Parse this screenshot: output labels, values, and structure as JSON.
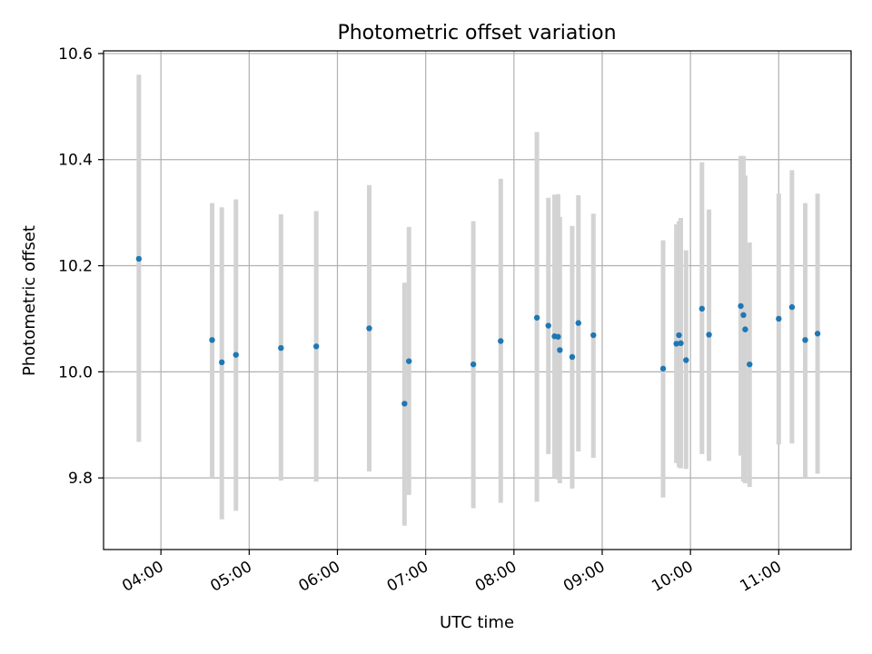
{
  "chart_data": {
    "type": "scatter",
    "title": "Photometric offset variation",
    "xlabel": "UTC time",
    "ylabel": "Photometric offset",
    "x_unit": "hours (UTC)",
    "xlim": [
      3.35,
      11.82
    ],
    "ylim": [
      9.665,
      10.605
    ],
    "grid": true,
    "legend": "none",
    "colors": {
      "marker": "#1f77b4",
      "errorbar": "#d3d3d3",
      "grid": "#b0b0b0"
    },
    "x_ticks": [
      {
        "value": 4,
        "label": "04:00"
      },
      {
        "value": 5,
        "label": "05:00"
      },
      {
        "value": 6,
        "label": "06:00"
      },
      {
        "value": 7,
        "label": "07:00"
      },
      {
        "value": 8,
        "label": "08:00"
      },
      {
        "value": 9,
        "label": "09:00"
      },
      {
        "value": 10,
        "label": "10:00"
      },
      {
        "value": 11,
        "label": "11:00"
      }
    ],
    "y_ticks": [
      {
        "value": 9.8,
        "label": "9.8"
      },
      {
        "value": 10.0,
        "label": "10.0"
      },
      {
        "value": 10.2,
        "label": "10.2"
      },
      {
        "value": 10.4,
        "label": "10.4"
      },
      {
        "value": 10.6,
        "label": "10.6"
      }
    ],
    "points": [
      {
        "x": 3.75,
        "y": 10.213,
        "ymin": 9.868,
        "ymax": 10.56
      },
      {
        "x": 4.58,
        "y": 10.06,
        "ymin": 9.8,
        "ymax": 10.318
      },
      {
        "x": 4.69,
        "y": 10.018,
        "ymin": 9.722,
        "ymax": 10.31
      },
      {
        "x": 4.85,
        "y": 10.032,
        "ymin": 9.738,
        "ymax": 10.325
      },
      {
        "x": 5.36,
        "y": 10.045,
        "ymin": 9.795,
        "ymax": 10.297
      },
      {
        "x": 5.76,
        "y": 10.048,
        "ymin": 9.793,
        "ymax": 10.303
      },
      {
        "x": 6.36,
        "y": 10.082,
        "ymin": 9.812,
        "ymax": 10.352
      },
      {
        "x": 6.76,
        "y": 9.94,
        "ymin": 9.71,
        "ymax": 10.168
      },
      {
        "x": 6.81,
        "y": 10.02,
        "ymin": 9.768,
        "ymax": 10.273
      },
      {
        "x": 7.54,
        "y": 10.014,
        "ymin": 9.743,
        "ymax": 10.284
      },
      {
        "x": 7.85,
        "y": 10.058,
        "ymin": 9.753,
        "ymax": 10.364
      },
      {
        "x": 8.26,
        "y": 10.102,
        "ymin": 9.755,
        "ymax": 10.452
      },
      {
        "x": 8.39,
        "y": 10.087,
        "ymin": 9.845,
        "ymax": 10.328
      },
      {
        "x": 8.46,
        "y": 10.067,
        "ymin": 9.8,
        "ymax": 10.334
      },
      {
        "x": 8.5,
        "y": 10.066,
        "ymin": 9.797,
        "ymax": 10.335
      },
      {
        "x": 8.52,
        "y": 10.041,
        "ymin": 9.79,
        "ymax": 10.292
      },
      {
        "x": 8.66,
        "y": 10.028,
        "ymin": 9.78,
        "ymax": 10.275
      },
      {
        "x": 8.73,
        "y": 10.092,
        "ymin": 9.85,
        "ymax": 10.333
      },
      {
        "x": 8.9,
        "y": 10.069,
        "ymin": 9.838,
        "ymax": 10.298
      },
      {
        "x": 9.69,
        "y": 10.006,
        "ymin": 9.763,
        "ymax": 10.248
      },
      {
        "x": 9.84,
        "y": 10.053,
        "ymin": 9.828,
        "ymax": 10.278
      },
      {
        "x": 9.87,
        "y": 10.069,
        "ymin": 9.82,
        "ymax": 10.284
      },
      {
        "x": 9.89,
        "y": 10.054,
        "ymin": 9.818,
        "ymax": 10.29
      },
      {
        "x": 9.95,
        "y": 10.022,
        "ymin": 9.817,
        "ymax": 10.229
      },
      {
        "x": 10.13,
        "y": 10.119,
        "ymin": 9.845,
        "ymax": 10.395
      },
      {
        "x": 10.21,
        "y": 10.07,
        "ymin": 9.832,
        "ymax": 10.306
      },
      {
        "x": 10.57,
        "y": 10.124,
        "ymin": 9.842,
        "ymax": 10.407
      },
      {
        "x": 10.6,
        "y": 10.107,
        "ymin": 9.793,
        "ymax": 10.407
      },
      {
        "x": 10.62,
        "y": 10.08,
        "ymin": 9.79,
        "ymax": 10.37
      },
      {
        "x": 10.67,
        "y": 10.014,
        "ymin": 9.783,
        "ymax": 10.244
      },
      {
        "x": 11.0,
        "y": 10.1,
        "ymin": 9.863,
        "ymax": 10.336
      },
      {
        "x": 11.15,
        "y": 10.122,
        "ymin": 9.865,
        "ymax": 10.38
      },
      {
        "x": 11.3,
        "y": 10.06,
        "ymin": 9.8,
        "ymax": 10.318
      },
      {
        "x": 11.44,
        "y": 10.072,
        "ymin": 9.808,
        "ymax": 10.336
      }
    ]
  }
}
